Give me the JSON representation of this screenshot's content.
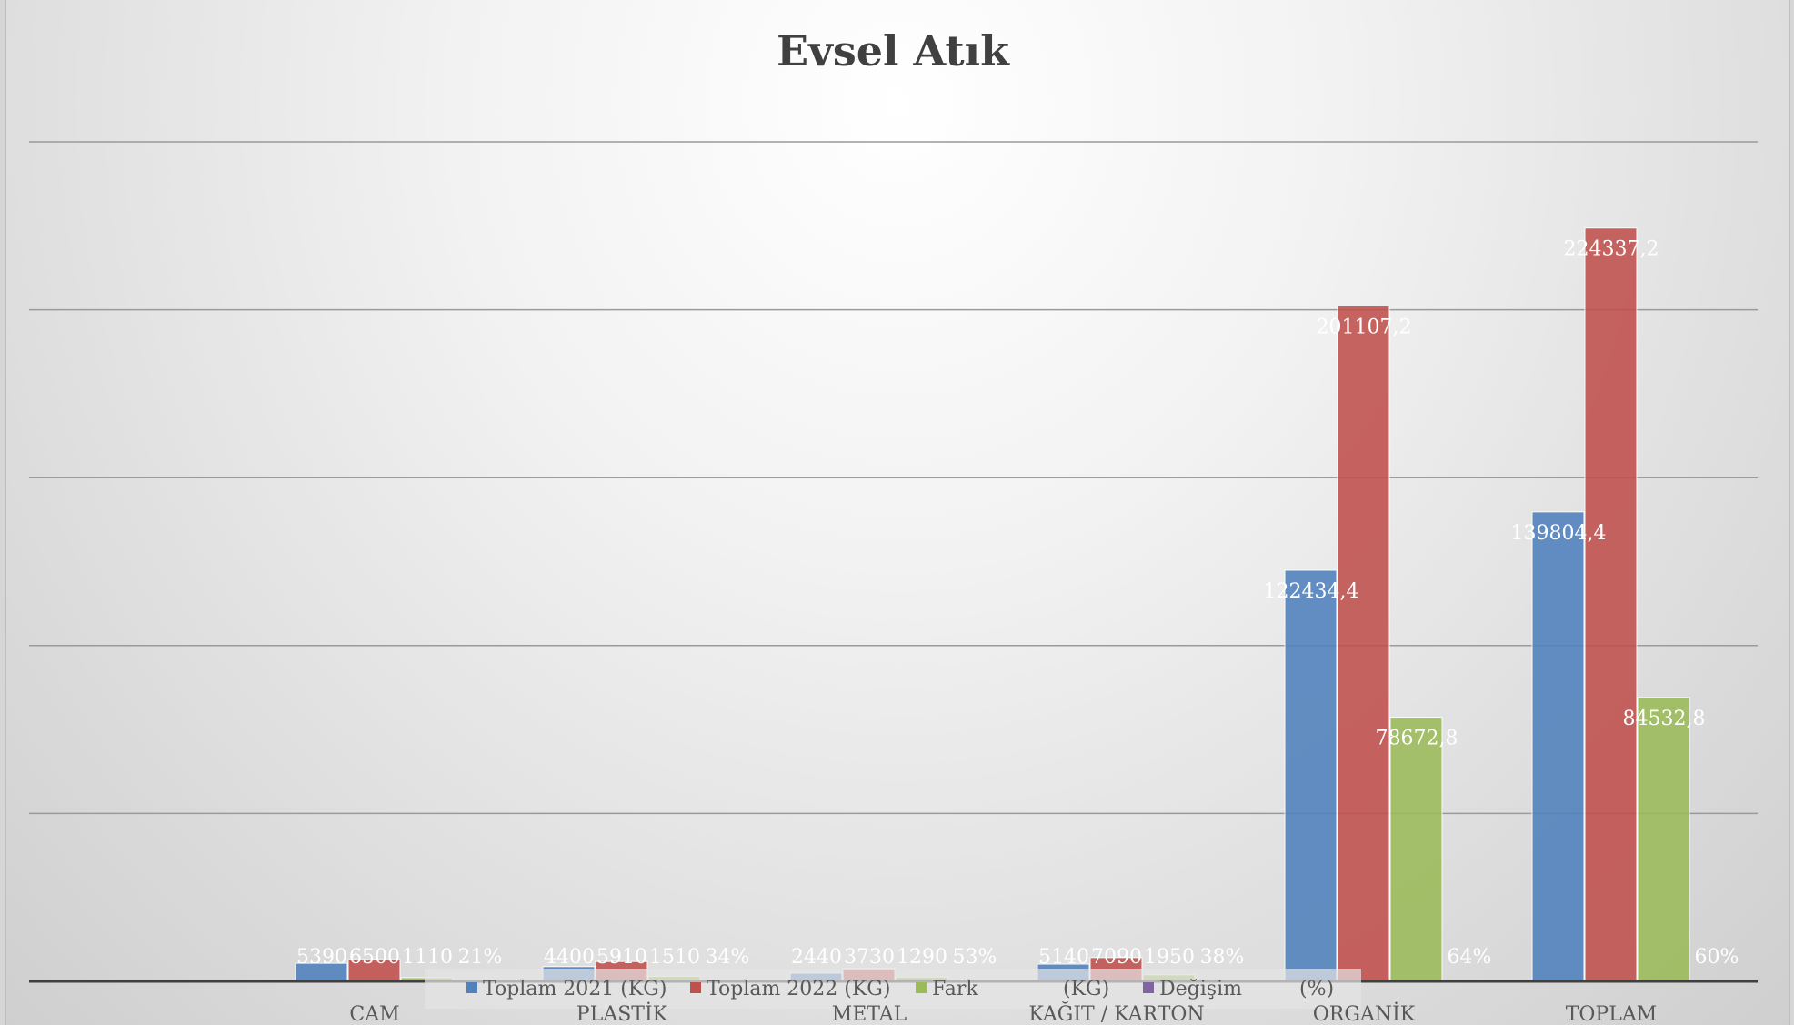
{
  "chart_data": {
    "type": "bar",
    "title": "Evsel Atık",
    "categories": [
      "CAM",
      "PLASTİK",
      "METAL",
      "KAĞIT / KARTON",
      "ORGANİK",
      "TOPLAM"
    ],
    "ylim": [
      0,
      250000
    ],
    "grid": true,
    "legend_position": "bottom",
    "series": [
      {
        "name": "Toplam 2021 (KG)",
        "color": "#4F81BD",
        "values": [
          5390,
          4400,
          2440,
          5140,
          122434.4,
          139804.4
        ],
        "labels": [
          "5390",
          "4400",
          "2440",
          "5140",
          "122434,4",
          "139804,4"
        ]
      },
      {
        "name": "Toplam 2022 (KG)",
        "color": "#C0504D",
        "values": [
          6500,
          5910,
          3730,
          7090,
          201107.2,
          224337.2
        ],
        "labels": [
          "6500",
          "5910",
          "3730",
          "7090",
          "201107,2",
          "224337,2"
        ]
      },
      {
        "name": "Fark (KG)",
        "color": "#9BBB59",
        "values": [
          1110,
          1510,
          1290,
          1950,
          78672.8,
          84532.8
        ],
        "labels": [
          "1110",
          "1510",
          "1290",
          "1950",
          "78672,8",
          "84532,8"
        ]
      },
      {
        "name": "Değişim (%)",
        "color": "#8064A2",
        "values": [
          21,
          34,
          53,
          38,
          64,
          60
        ],
        "labels": [
          "21%",
          "34%",
          "53%",
          "38%",
          "64%",
          "60%"
        ]
      }
    ],
    "legend_labels": {
      "s1": "Toplam 2021 (KG)",
      "s2": "Toplam 2022 (KG)",
      "s3a": "Fark",
      "s3b": "(KG)",
      "s4a": "Değişim",
      "s4b": "(%)"
    }
  }
}
